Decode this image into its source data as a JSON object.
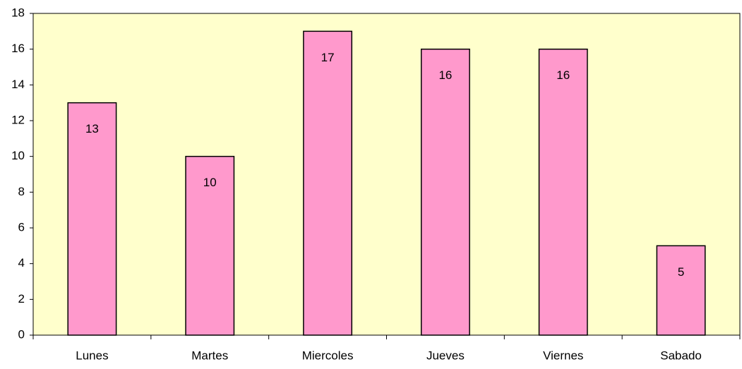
{
  "chart_data": {
    "type": "bar",
    "categories": [
      "Lunes",
      "Martes",
      "Miercoles",
      "Jueves",
      "Viernes",
      "Sabado"
    ],
    "values": [
      13,
      10,
      17,
      16,
      16,
      5
    ],
    "color": "#ff99cc",
    "plot_background": "#ffffcc",
    "ylim": [
      0,
      18
    ],
    "yticks": [
      0,
      2,
      4,
      6,
      8,
      10,
      12,
      14,
      16,
      18
    ],
    "grid": false
  }
}
